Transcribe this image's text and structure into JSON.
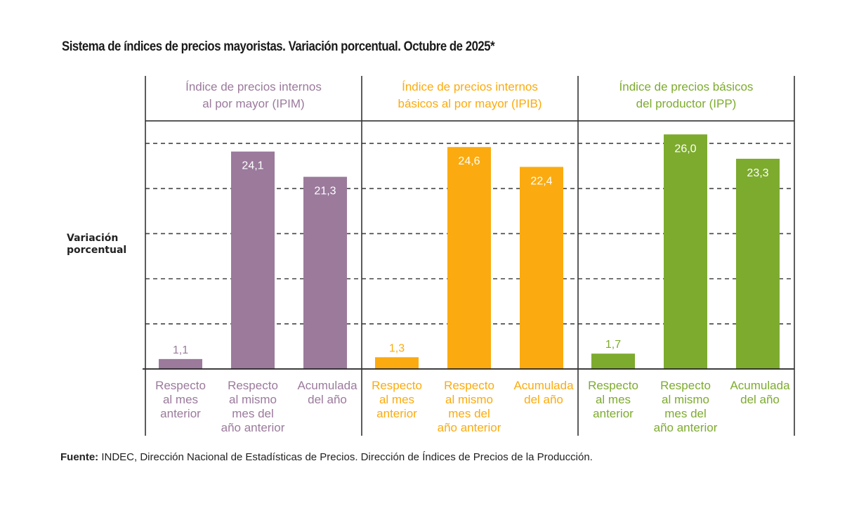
{
  "title": "Sistema de índices de precios mayoristas. Variación porcentual. Octubre de 2025*",
  "source": {
    "label": "Fuente:",
    "text": " INDEC, Dirección Nacional de Estadísticas de Precios. Dirección de Índices de Precios de la Producción."
  },
  "chart_data": {
    "type": "bar",
    "title": "Sistema de índices de precios mayoristas. Variación porcentual. Octubre de 2025*",
    "ylabel": "Variación porcentual",
    "xlabel": "",
    "ylim": [
      0,
      27.5
    ],
    "yticks": [
      5,
      10,
      15,
      20,
      25
    ],
    "grid": true,
    "categories": [
      [
        "Respecto",
        "al mes",
        "anterior"
      ],
      [
        "Respecto",
        "al mismo",
        "mes del",
        "año anterior"
      ],
      [
        "Acumulada",
        "del año"
      ]
    ],
    "series": [
      {
        "name": [
          "Índice de precios internos",
          "al por mayor (IPIM)"
        ],
        "color": "#9b7a9c",
        "values": [
          1.1,
          24.1,
          21.3
        ],
        "labels": [
          "1,1",
          "24,1",
          "21,3"
        ]
      },
      {
        "name": [
          "Índice de precios internos",
          "básicos al por mayor (IPIB)"
        ],
        "color": "#fbab0f",
        "values": [
          1.3,
          24.6,
          22.4
        ],
        "labels": [
          "1,3",
          "24,6",
          "22,4"
        ]
      },
      {
        "name": [
          "Índice de precios básicos",
          "del productor (IPP)"
        ],
        "color": "#7dab2e",
        "values": [
          1.7,
          26.0,
          23.3
        ],
        "labels": [
          "1,7",
          "26,0",
          "23,3"
        ]
      }
    ]
  }
}
